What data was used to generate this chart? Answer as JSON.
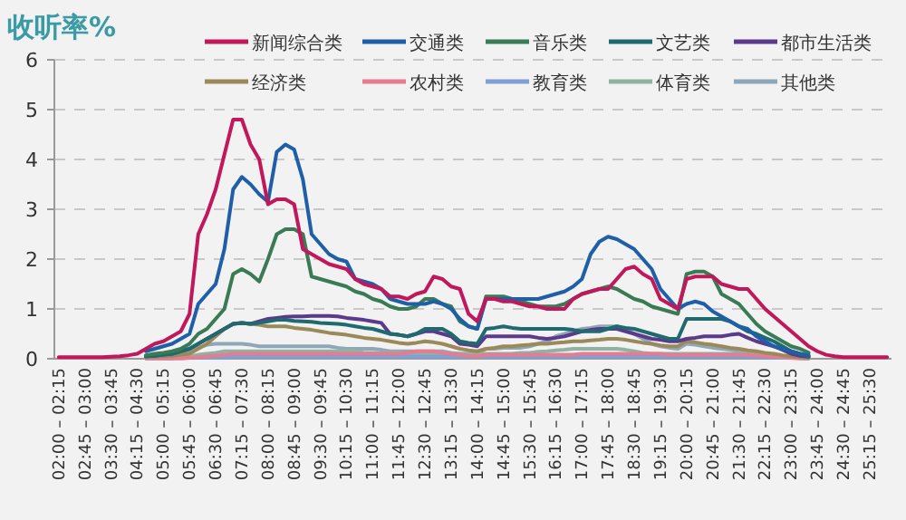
{
  "chart_data": {
    "type": "line",
    "ylabel": "收听率%",
    "categories": [
      "02:00 – 02:15",
      null,
      null,
      "02:45 – 03:00",
      null,
      null,
      "03:30 – 03:45",
      null,
      null,
      "04:15 – 04:30",
      null,
      null,
      "05:00 – 05:15",
      null,
      null,
      "05:45 – 06:00",
      null,
      null,
      "06:30 – 06:45",
      null,
      null,
      "07:15 – 07:30",
      null,
      null,
      "08:00 – 08:15",
      null,
      null,
      "08:45 – 09:00",
      null,
      null,
      "09:30 – 09:45",
      null,
      null,
      "10:15 – 10:30",
      null,
      null,
      "11:00 – 11:15",
      null,
      null,
      "11:45 – 12:00",
      null,
      null,
      "12:30 – 12:45",
      null,
      null,
      "13:15 – 13:30",
      null,
      null,
      "14:00 – 14:15",
      null,
      null,
      "14:45 – 15:00",
      null,
      null,
      "15:30 – 15:45",
      null,
      null,
      "16:15 – 16:30",
      null,
      null,
      "17:00 – 17:15",
      null,
      null,
      "17:45 – 18:00",
      null,
      null,
      "18:30 – 18:45",
      null,
      null,
      "19:15 – 19:30",
      null,
      null,
      "20:00 – 20:15",
      null,
      null,
      "20:45 – 21:00",
      null,
      null,
      "21:30 – 21:45",
      null,
      null,
      "22:15 – 22:30",
      null,
      null,
      "23:00 – 23:15",
      null,
      null,
      "23:45 – 24:00",
      null,
      null,
      "24:30 – 24:45",
      null,
      null,
      "25:15 – 25:30",
      null,
      null
    ],
    "series": [
      {
        "name": "新闻综合类",
        "color": "#c0185a",
        "values": [
          0.03,
          0.03,
          0.03,
          0.03,
          0.03,
          0.03,
          0.04,
          0.05,
          0.07,
          0.1,
          0.2,
          0.3,
          0.35,
          0.45,
          0.55,
          0.9,
          2.5,
          2.9,
          3.4,
          4.1,
          4.8,
          4.8,
          4.3,
          4.0,
          3.1,
          3.2,
          3.2,
          3.1,
          2.2,
          2.1,
          2.0,
          1.9,
          1.85,
          1.8,
          1.6,
          1.5,
          1.45,
          1.4,
          1.25,
          1.25,
          1.2,
          1.3,
          1.35,
          1.65,
          1.6,
          1.45,
          1.4,
          0.9,
          0.75,
          1.2,
          1.2,
          1.15,
          1.15,
          1.1,
          1.05,
          1.05,
          1.0,
          1.0,
          1.0,
          1.2,
          1.3,
          1.35,
          1.4,
          1.4,
          1.6,
          1.8,
          1.85,
          1.7,
          1.6,
          1.2,
          1.1,
          1.0,
          1.6,
          1.65,
          1.65,
          1.65,
          1.5,
          1.45,
          1.4,
          1.4,
          1.2,
          1.0,
          0.85,
          0.7,
          0.55,
          0.4,
          0.25,
          0.15,
          0.08,
          0.05,
          0.03,
          0.03,
          0.03,
          0.03,
          0.03,
          0.03
        ]
      },
      {
        "name": "交通类",
        "color": "#1f5fa8",
        "values": [
          null,
          null,
          null,
          null,
          null,
          null,
          null,
          null,
          null,
          null,
          0.15,
          0.2,
          0.25,
          0.3,
          0.4,
          0.5,
          1.1,
          1.3,
          1.5,
          2.2,
          3.4,
          3.65,
          3.5,
          3.3,
          3.15,
          4.15,
          4.3,
          4.2,
          3.6,
          2.5,
          2.3,
          2.1,
          2.0,
          1.95,
          1.6,
          1.55,
          1.5,
          1.4,
          1.2,
          1.15,
          1.1,
          1.1,
          1.1,
          1.15,
          1.1,
          1.0,
          0.8,
          0.65,
          0.6,
          1.2,
          1.2,
          1.2,
          1.2,
          1.2,
          1.2,
          1.2,
          1.25,
          1.3,
          1.35,
          1.45,
          1.6,
          2.1,
          2.35,
          2.45,
          2.4,
          2.3,
          2.2,
          2.0,
          1.8,
          1.4,
          1.2,
          1.0,
          1.1,
          1.15,
          1.1,
          0.95,
          0.85,
          0.75,
          0.65,
          0.6,
          0.45,
          0.35,
          0.25,
          0.2,
          0.15,
          0.1,
          0.07,
          null,
          null,
          null,
          null,
          null,
          null,
          null,
          null,
          null
        ]
      },
      {
        "name": "音乐类",
        "color": "#3a7a55",
        "values": [
          null,
          null,
          null,
          null,
          null,
          null,
          null,
          null,
          null,
          null,
          0.07,
          0.1,
          0.12,
          0.15,
          0.2,
          0.3,
          0.5,
          0.6,
          0.8,
          1.0,
          1.7,
          1.8,
          1.7,
          1.55,
          2.0,
          2.5,
          2.6,
          2.6,
          2.5,
          1.65,
          1.6,
          1.55,
          1.5,
          1.45,
          1.35,
          1.3,
          1.2,
          1.15,
          1.05,
          1.0,
          1.0,
          1.05,
          1.2,
          1.2,
          1.1,
          1.05,
          0.75,
          0.65,
          0.6,
          1.25,
          1.25,
          1.25,
          1.2,
          1.15,
          1.1,
          1.05,
          1.05,
          1.05,
          1.1,
          1.2,
          1.3,
          1.35,
          1.4,
          1.45,
          1.4,
          1.3,
          1.2,
          1.15,
          1.05,
          1.0,
          0.95,
          0.9,
          1.7,
          1.75,
          1.75,
          1.65,
          1.3,
          1.2,
          1.1,
          0.9,
          0.7,
          0.55,
          0.45,
          0.35,
          0.25,
          0.2,
          0.12,
          null,
          null,
          null,
          null,
          null,
          null,
          null,
          null,
          null
        ]
      },
      {
        "name": "文艺类",
        "color": "#1e6a6e",
        "values": [
          null,
          null,
          null,
          null,
          null,
          null,
          null,
          null,
          null,
          null,
          0.05,
          0.06,
          0.08,
          0.1,
          0.15,
          0.2,
          0.3,
          0.4,
          0.5,
          0.6,
          0.7,
          0.72,
          0.7,
          0.72,
          0.75,
          0.78,
          0.78,
          0.76,
          0.75,
          0.74,
          0.72,
          0.71,
          0.7,
          0.68,
          0.65,
          0.62,
          0.6,
          0.55,
          0.5,
          0.48,
          0.45,
          0.5,
          0.6,
          0.6,
          0.6,
          0.5,
          0.35,
          0.32,
          0.3,
          0.6,
          0.62,
          0.65,
          0.62,
          0.6,
          0.6,
          0.6,
          0.6,
          0.6,
          0.6,
          0.58,
          0.55,
          0.55,
          0.55,
          0.6,
          0.65,
          0.62,
          0.6,
          0.55,
          0.5,
          0.45,
          0.4,
          0.4,
          0.8,
          0.8,
          0.8,
          0.8,
          0.8,
          0.75,
          0.65,
          0.55,
          0.5,
          0.42,
          0.35,
          0.25,
          0.15,
          0.1,
          0.05,
          null,
          null,
          null,
          null,
          null,
          null,
          null,
          null,
          null
        ]
      },
      {
        "name": "都市生活类",
        "color": "#5b3a8c",
        "values": [
          null,
          null,
          null,
          null,
          null,
          null,
          null,
          null,
          null,
          null,
          0.05,
          0.06,
          0.08,
          0.1,
          0.15,
          0.2,
          0.3,
          0.4,
          0.5,
          0.6,
          0.7,
          0.72,
          0.7,
          0.75,
          0.8,
          0.82,
          0.84,
          0.85,
          0.85,
          0.86,
          0.86,
          0.86,
          0.85,
          0.82,
          0.8,
          0.78,
          0.75,
          0.72,
          0.5,
          0.48,
          0.45,
          0.5,
          0.55,
          0.55,
          0.5,
          0.45,
          0.3,
          0.28,
          0.25,
          0.45,
          0.45,
          0.45,
          0.45,
          0.45,
          0.45,
          0.42,
          0.4,
          0.42,
          0.45,
          0.5,
          0.55,
          0.58,
          0.6,
          0.6,
          0.6,
          0.55,
          0.5,
          0.45,
          0.4,
          0.38,
          0.35,
          0.35,
          0.4,
          0.42,
          0.45,
          0.45,
          0.45,
          0.48,
          0.5,
          0.42,
          0.35,
          0.3,
          0.25,
          0.18,
          0.1,
          0.06,
          0.04,
          null,
          null,
          null,
          null,
          null,
          null,
          null,
          null,
          null
        ]
      },
      {
        "name": "经济类",
        "color": "#9a8a5a",
        "values": [
          null,
          null,
          null,
          null,
          null,
          null,
          null,
          null,
          null,
          null,
          0.03,
          0.04,
          0.05,
          0.06,
          0.08,
          0.1,
          0.2,
          0.3,
          0.45,
          0.6,
          0.7,
          0.72,
          0.7,
          0.68,
          0.65,
          0.65,
          0.65,
          0.62,
          0.6,
          0.58,
          0.55,
          0.52,
          0.5,
          0.48,
          0.45,
          0.42,
          0.4,
          0.38,
          0.35,
          0.32,
          0.3,
          0.32,
          0.35,
          0.33,
          0.3,
          0.25,
          0.2,
          0.17,
          0.15,
          0.2,
          0.22,
          0.25,
          0.25,
          0.27,
          0.28,
          0.3,
          0.3,
          0.32,
          0.33,
          0.35,
          0.35,
          0.37,
          0.38,
          0.4,
          0.4,
          0.38,
          0.35,
          0.32,
          0.3,
          0.27,
          0.25,
          0.25,
          0.35,
          0.33,
          0.3,
          0.28,
          0.25,
          0.22,
          0.2,
          0.17,
          0.15,
          0.12,
          0.1,
          0.07,
          0.05,
          0.03,
          0.02,
          null,
          null,
          null,
          null,
          null,
          null,
          null,
          null,
          null
        ]
      },
      {
        "name": "农村类",
        "color": "#e77b8f",
        "values": [
          null,
          null,
          null,
          null,
          null,
          null,
          null,
          null,
          null,
          null,
          0.01,
          0.01,
          0.01,
          0.01,
          0.01,
          0.02,
          0.03,
          0.05,
          0.06,
          0.08,
          0.1,
          0.1,
          0.1,
          0.1,
          0.1,
          0.1,
          0.1,
          0.1,
          0.1,
          0.1,
          0.1,
          0.1,
          0.1,
          0.1,
          0.1,
          0.1,
          0.1,
          0.1,
          0.1,
          0.1,
          0.12,
          0.15,
          0.15,
          0.15,
          0.12,
          0.1,
          0.08,
          0.06,
          0.05,
          0.08,
          0.08,
          0.08,
          0.08,
          0.08,
          0.08,
          0.08,
          0.08,
          0.08,
          0.08,
          0.08,
          0.1,
          0.1,
          0.1,
          0.1,
          0.1,
          0.1,
          0.1,
          0.1,
          0.1,
          0.1,
          0.08,
          0.08,
          0.08,
          0.08,
          0.08,
          0.08,
          0.08,
          0.08,
          0.08,
          0.08,
          0.06,
          0.05,
          0.04,
          0.03,
          0.02,
          0.01,
          0.01,
          null,
          null,
          null,
          null,
          null,
          null,
          null,
          null,
          null
        ]
      },
      {
        "name": "教育类",
        "color": "#7f9fd6",
        "values": [
          null,
          null,
          null,
          null,
          null,
          null,
          null,
          null,
          null,
          null,
          0.01,
          0.01,
          0.01,
          0.01,
          0.01,
          0.02,
          0.02,
          0.02,
          0.02,
          0.02,
          0.04,
          0.04,
          0.04,
          0.04,
          0.04,
          0.04,
          0.04,
          0.04,
          0.04,
          0.04,
          0.04,
          0.04,
          0.04,
          0.04,
          0.04,
          0.04,
          0.04,
          0.04,
          0.04,
          0.04,
          0.04,
          0.04,
          0.04,
          0.04,
          0.04,
          0.04,
          0.04,
          0.04,
          0.04,
          0.04,
          0.04,
          0.04,
          0.04,
          0.04,
          0.04,
          0.04,
          0.04,
          0.04,
          0.04,
          0.04,
          0.04,
          0.04,
          0.04,
          0.04,
          0.04,
          0.04,
          0.04,
          0.04,
          0.04,
          0.04,
          0.04,
          0.04,
          0.04,
          0.04,
          0.04,
          0.04,
          0.04,
          0.04,
          0.04,
          0.04,
          0.03,
          0.02,
          0.02,
          0.02,
          0.02,
          0.01,
          0.01,
          null,
          null,
          null,
          null,
          null,
          null,
          null,
          null,
          null
        ]
      },
      {
        "name": "体育类",
        "color": "#8fb3a3",
        "values": [
          null,
          null,
          null,
          null,
          null,
          null,
          null,
          null,
          null,
          null,
          0.01,
          0.01,
          0.01,
          0.01,
          0.03,
          0.05,
          0.08,
          0.1,
          0.12,
          0.15,
          0.15,
          0.15,
          0.15,
          0.15,
          0.15,
          0.15,
          0.15,
          0.15,
          0.15,
          0.15,
          0.15,
          0.15,
          0.15,
          0.15,
          0.15,
          0.12,
          0.12,
          0.12,
          0.12,
          0.12,
          0.1,
          0.1,
          0.1,
          0.1,
          0.1,
          0.1,
          0.1,
          0.1,
          0.1,
          0.1,
          0.1,
          0.1,
          0.1,
          0.12,
          0.12,
          0.14,
          0.15,
          0.17,
          0.18,
          0.2,
          0.2,
          0.2,
          0.2,
          0.2,
          0.2,
          0.18,
          0.15,
          0.12,
          0.1,
          0.1,
          0.1,
          0.1,
          0.1,
          0.1,
          0.1,
          0.1,
          0.1,
          0.1,
          0.1,
          0.1,
          0.08,
          0.06,
          0.05,
          0.04,
          0.03,
          0.02,
          0.01,
          null,
          null,
          null,
          null,
          null,
          null,
          null,
          null,
          null
        ]
      },
      {
        "name": "其他类",
        "color": "#8fa8b8",
        "values": [
          null,
          null,
          null,
          null,
          null,
          null,
          null,
          null,
          null,
          null,
          0.01,
          0.01,
          0.01,
          0.01,
          0.05,
          0.15,
          0.22,
          0.28,
          0.3,
          0.3,
          0.3,
          0.3,
          0.28,
          0.25,
          0.25,
          0.25,
          0.25,
          0.25,
          0.25,
          0.25,
          0.25,
          0.25,
          0.22,
          0.2,
          0.2,
          0.2,
          0.2,
          0.18,
          0.15,
          0.15,
          0.15,
          0.15,
          0.15,
          0.15,
          0.15,
          0.12,
          0.1,
          0.1,
          0.1,
          0.2,
          0.2,
          0.22,
          0.22,
          0.22,
          0.25,
          0.3,
          0.35,
          0.45,
          0.5,
          0.55,
          0.6,
          0.62,
          0.65,
          0.65,
          0.65,
          0.6,
          0.5,
          0.4,
          0.3,
          0.25,
          0.22,
          0.2,
          0.3,
          0.28,
          0.25,
          0.22,
          0.2,
          0.18,
          0.15,
          0.12,
          0.1,
          0.08,
          0.06,
          0.04,
          0.03,
          0.02,
          0.01,
          null,
          null,
          null,
          null,
          null,
          null,
          null,
          null,
          null
        ]
      }
    ],
    "ylim": [
      0,
      6
    ],
    "yticks": [
      0,
      1,
      2,
      3,
      4,
      5,
      6
    ],
    "grid": "y",
    "legend": "top"
  }
}
